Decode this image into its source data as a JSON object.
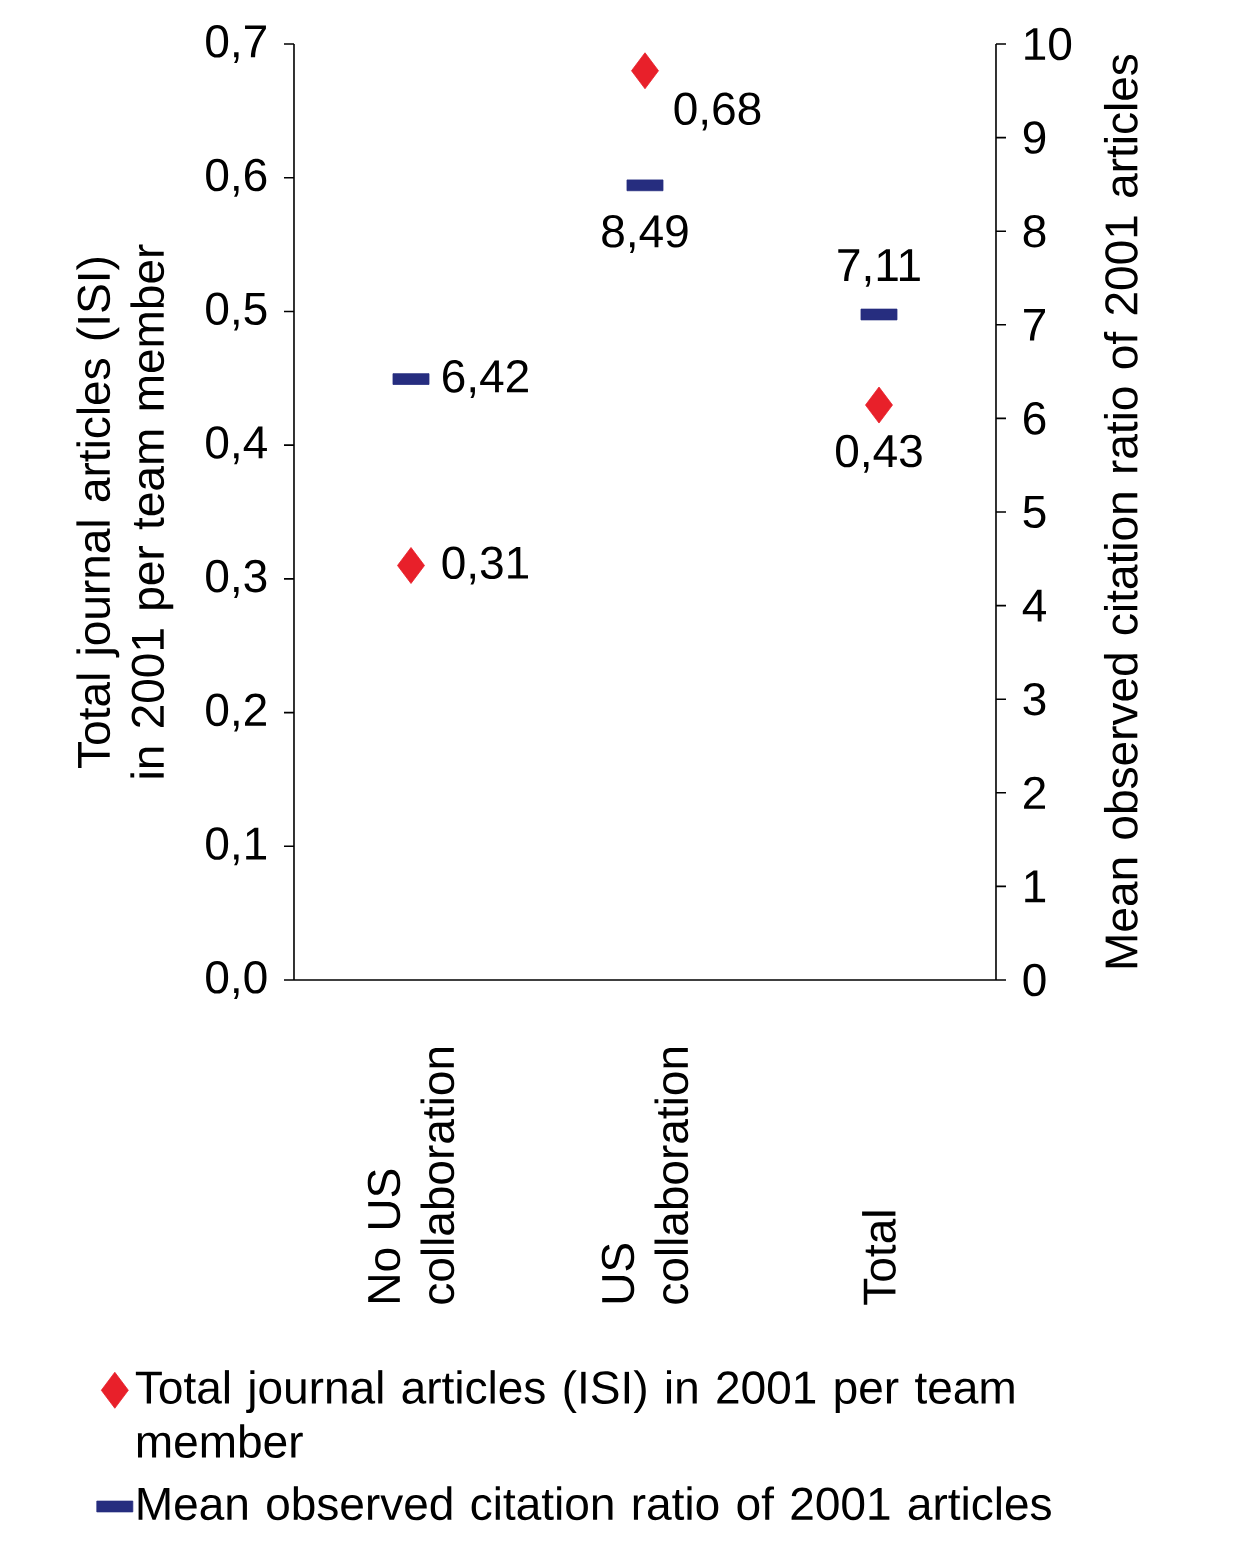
{
  "chart_data": {
    "type": "scatter",
    "categories": [
      "No US collaboration",
      "US collaboration",
      "Total"
    ],
    "ylabel": "Total journal articles (ISI) in 2001 per team member",
    "y2label": "Mean observed citation ratio of 2001 articles",
    "ylim": [
      0,
      0.7
    ],
    "yticks": [
      {
        "value": 0,
        "label": "0,0"
      },
      {
        "value": 0.1,
        "label": "0,1"
      },
      {
        "value": 0.2,
        "label": "0,2"
      },
      {
        "value": 0.3,
        "label": "0,3"
      },
      {
        "value": 0.4,
        "label": "0,4"
      },
      {
        "value": 0.5,
        "label": "0,5"
      },
      {
        "value": 0.6,
        "label": "0,6"
      },
      {
        "value": 0.7,
        "label": "0,7"
      }
    ],
    "y2lim": [
      0,
      10
    ],
    "y2ticks": [
      0,
      1,
      2,
      3,
      4,
      5,
      6,
      7,
      8,
      9,
      10
    ],
    "legend": "bottom",
    "series": [
      {
        "name": "Total journal articles (ISI) in 2001 per team member",
        "marker": "diamond",
        "color": "#e8202a",
        "values": [
          0.31,
          0.68,
          0.43
        ],
        "value_labels": [
          "0,31",
          "0,68",
          "0,43"
        ]
      },
      {
        "name": "Mean observed citation ratio of 2001 articles",
        "marker": "square",
        "color": "#262d7f",
        "axis": "y2",
        "values": [
          6.42,
          8.49,
          7.11
        ],
        "value_labels": [
          "6,42",
          "8,49",
          "7,11"
        ]
      }
    ]
  }
}
